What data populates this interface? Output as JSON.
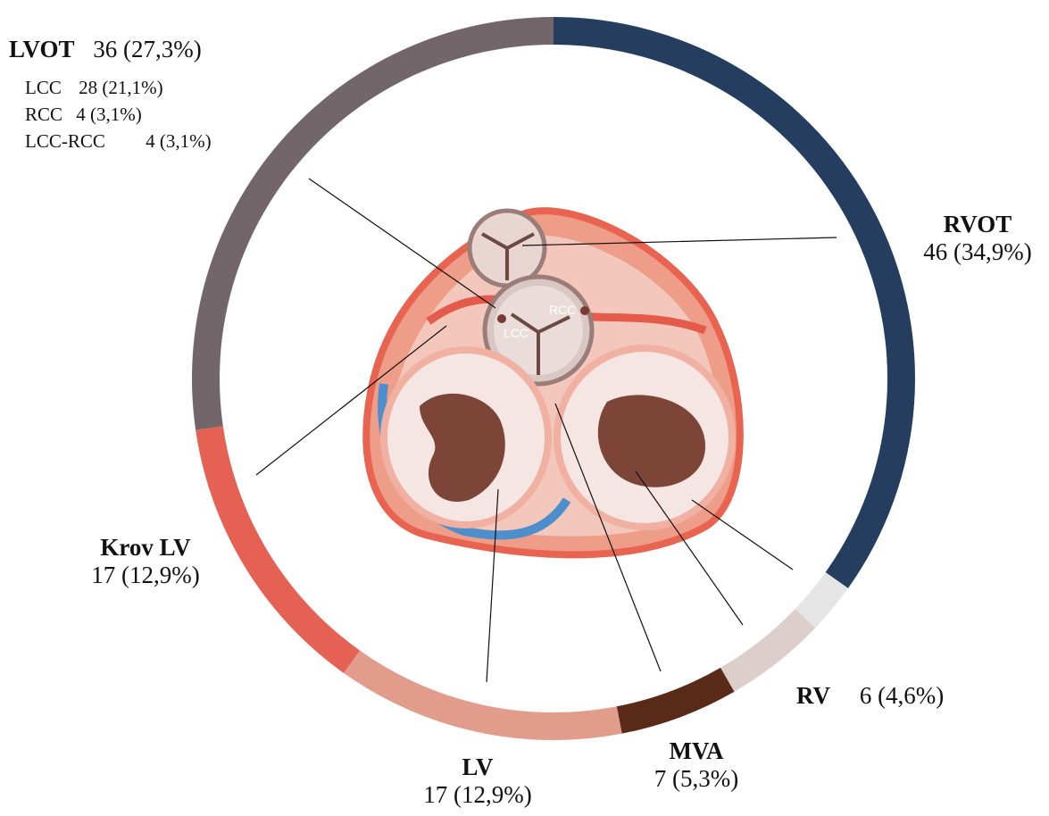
{
  "chart_data": {
    "type": "pie",
    "style": "donut",
    "segments": [
      {
        "name": "RVOT",
        "value": 46,
        "value_text": "46 (34,9%)",
        "color": "#253d5e"
      },
      {
        "name": "",
        "value": 3,
        "value_text": "",
        "color": "#e5e5e5"
      },
      {
        "name": "RV",
        "value": 6,
        "value_text": "6 (4,6%)",
        "color": "#dccfcb"
      },
      {
        "name": "MVA",
        "value": 7,
        "value_text": "7 (5,3%)",
        "color": "#5a2a19"
      },
      {
        "name": "LV",
        "value": 17,
        "value_text": "17 (12,9%)",
        "color": "#e29c8b"
      },
      {
        "name": "Krov LV",
        "value": 17,
        "value_text": "17 (12,9%)",
        "color": "#e46153"
      },
      {
        "name": "LVOT",
        "value": 36,
        "value_text": "36 (27,3%)",
        "color": "#72666a"
      }
    ],
    "lvot_subgroups": [
      {
        "name": "LCC",
        "value": 28,
        "value_text": "28 (21,1%)"
      },
      {
        "name": "RCC",
        "value": 4,
        "value_text": "4 (3,1%)"
      },
      {
        "name": "LCC-RCC",
        "value": 4,
        "value_text": "4 (3,1%)"
      }
    ],
    "illustration_labels": {
      "lcc": "LCC",
      "rcc": "RCC"
    },
    "start_angle_deg": 0,
    "direction": "clockwise"
  }
}
